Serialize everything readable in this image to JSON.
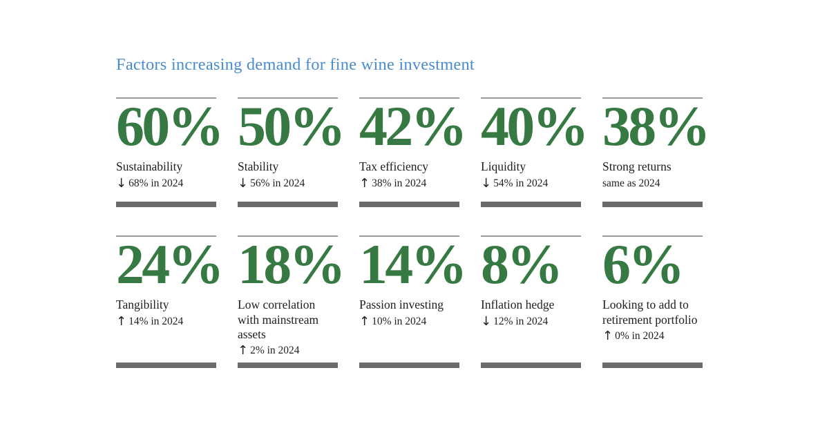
{
  "header": {
    "title": "Factors increasing demand for fine wine investment"
  },
  "colors": {
    "title_blue": "#4a8ccd",
    "stat_green": "#377942",
    "thin_rule_gray": "#9a9a9a",
    "thick_bar_gray": "#6b6b6b",
    "text_dark": "#1e1e1e",
    "background": "#ffffff"
  },
  "cards": [
    {
      "value": "60%",
      "label": "Sustainability",
      "arrow": "↓",
      "direction": "down",
      "change": "68% in 2024"
    },
    {
      "value": "50%",
      "label": "Stability",
      "arrow": "↓",
      "direction": "down",
      "change": "56% in 2024"
    },
    {
      "value": "42%",
      "label": "Tax efficiency",
      "arrow": "↑",
      "direction": "up",
      "change": "38% in 2024"
    },
    {
      "value": "40%",
      "label": "Liquidity",
      "arrow": "↓",
      "direction": "down",
      "change": "54% in 2024"
    },
    {
      "value": "38%",
      "label": "Strong returns",
      "arrow": "",
      "direction": "none",
      "change": "same as 2024"
    },
    {
      "value": "24%",
      "label": "Tangibility",
      "arrow": "↑",
      "direction": "up",
      "change": "14% in 2024"
    },
    {
      "value": "18%",
      "label": "Low correlation\nwith mainstream\nassets",
      "arrow": "↑",
      "direction": "up",
      "change": "2% in 2024"
    },
    {
      "value": "14%",
      "label": "Passion investing",
      "arrow": "↑",
      "direction": "up",
      "change": "10% in 2024"
    },
    {
      "value": "8%",
      "label": "Inflation hedge",
      "arrow": "↓",
      "direction": "down",
      "change": "12% in 2024"
    },
    {
      "value": "6%",
      "label": "Looking to add to\nretirement portfolio",
      "arrow": "↑",
      "direction": "up",
      "change": "0% in 2024"
    }
  ],
  "chart_data": {
    "type": "table",
    "title": "Factors increasing demand for fine wine investment",
    "columns": [
      "factor",
      "percent_current",
      "trend_vs_2024",
      "percent_2024_note"
    ],
    "rows": [
      [
        "Sustainability",
        60,
        "down",
        "68% in 2024"
      ],
      [
        "Stability",
        50,
        "down",
        "56% in 2024"
      ],
      [
        "Tax efficiency",
        42,
        "up",
        "38% in 2024"
      ],
      [
        "Liquidity",
        40,
        "down",
        "54% in 2024"
      ],
      [
        "Strong returns",
        38,
        "same",
        "same as 2024"
      ],
      [
        "Tangibility",
        24,
        "up",
        "14% in 2024"
      ],
      [
        "Low correlation with mainstream assets",
        18,
        "up",
        "2% in 2024"
      ],
      [
        "Passion investing",
        14,
        "up",
        "10% in 2024"
      ],
      [
        "Inflation hedge",
        8,
        "down",
        "12% in 2024"
      ],
      [
        "Looking to add to retirement portfolio",
        6,
        "up",
        "0% in 2024"
      ]
    ]
  }
}
